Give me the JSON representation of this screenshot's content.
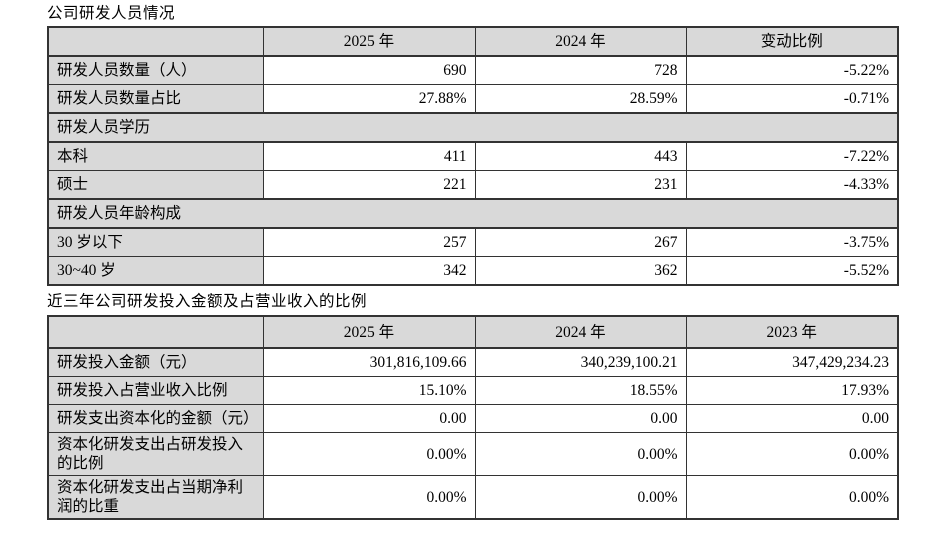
{
  "colors": {
    "shading": "#d9d9d9",
    "border": "#333333",
    "text": "#000000",
    "background": "#ffffff"
  },
  "table1": {
    "title": "公司研发人员情况",
    "headers": [
      "",
      "2025 年",
      "2024 年",
      "变动比例"
    ],
    "rows": [
      {
        "type": "data",
        "label": "研发人员数量（人）",
        "values": [
          "690",
          "728",
          "-5.22%"
        ]
      },
      {
        "type": "data",
        "label": "研发人员数量占比",
        "values": [
          "27.88%",
          "28.59%",
          "-0.71%"
        ]
      },
      {
        "type": "section",
        "label": "研发人员学历"
      },
      {
        "type": "data",
        "label": "本科",
        "values": [
          "411",
          "443",
          "-7.22%"
        ]
      },
      {
        "type": "data",
        "label": "硕士",
        "values": [
          "221",
          "231",
          "-4.33%"
        ]
      },
      {
        "type": "section",
        "label": "研发人员年龄构成"
      },
      {
        "type": "data",
        "label": "30 岁以下",
        "values": [
          "257",
          "267",
          "-3.75%"
        ]
      },
      {
        "type": "data",
        "label": "30~40 岁",
        "values": [
          "342",
          "362",
          "-5.52%"
        ]
      }
    ]
  },
  "table2": {
    "title": "近三年公司研发投入金额及占营业收入的比例",
    "headers": [
      "",
      "2025 年",
      "2024 年",
      "2023 年"
    ],
    "rows": [
      {
        "label": "研发投入金额（元）",
        "values": [
          "301,816,109.66",
          "340,239,100.21",
          "347,429,234.23"
        ]
      },
      {
        "label": "研发投入占营业收入比例",
        "values": [
          "15.10%",
          "18.55%",
          "17.93%"
        ]
      },
      {
        "label": "研发支出资本化的金额（元）",
        "values": [
          "0.00",
          "0.00",
          "0.00"
        ]
      },
      {
        "label": "资本化研发支出占研发投入的比例",
        "values": [
          "0.00%",
          "0.00%",
          "0.00%"
        ]
      },
      {
        "label": "资本化研发支出占当期净利润的比重",
        "values": [
          "0.00%",
          "0.00%",
          "0.00%"
        ]
      }
    ]
  }
}
